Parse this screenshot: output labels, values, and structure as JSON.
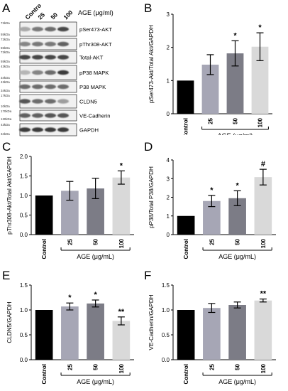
{
  "figure": {
    "colors": {
      "control": "#000000",
      "c25": "#a6a6b5",
      "c50": "#7c7c86",
      "c100": "#d9d9d9"
    },
    "panels": [
      "A",
      "B",
      "C",
      "D",
      "E",
      "F"
    ]
  },
  "blot": {
    "lanes": [
      "Contro",
      "25",
      "50",
      "100"
    ],
    "header": "AGE (μg/ml)",
    "rows": [
      {
        "label": "pSer473-AKT",
        "markers": [
          "72kDa",
          "55kDa"
        ]
      },
      {
        "label": "pThr308-AKT",
        "markers": [
          "72kDa",
          "55kDa"
        ]
      },
      {
        "label": "Total-AKT",
        "markers": [
          "72kDa",
          "55kDa"
        ]
      },
      {
        "label": "pP38 MAPK",
        "markers": [
          "43kDa",
          "34kDa"
        ]
      },
      {
        "label": "P38 MAPK",
        "markers": [
          "43kDa",
          "34kDa"
        ]
      },
      {
        "label": "CLDN5",
        "markers": [
          "17kDa",
          "10kDa"
        ]
      },
      {
        "label": "VE-Cadherin",
        "markers": [
          "170kDa",
          "130kDa"
        ]
      },
      {
        "label": "GAPDH",
        "markers": [
          "43kDa",
          "34kDa"
        ]
      }
    ],
    "intensity": [
      [
        0.35,
        0.55,
        0.6,
        0.75
      ],
      [
        0.5,
        0.55,
        0.55,
        0.65
      ],
      [
        0.75,
        0.75,
        0.75,
        0.75
      ],
      [
        0.3,
        0.5,
        0.6,
        0.8
      ],
      [
        0.6,
        0.6,
        0.6,
        0.6
      ],
      [
        0.7,
        0.6,
        0.6,
        0.4
      ],
      [
        0.65,
        0.65,
        0.7,
        0.7
      ],
      [
        0.8,
        0.8,
        0.8,
        0.8
      ]
    ]
  },
  "chart_data": [
    {
      "panel": "B",
      "type": "bar",
      "categories": [
        "Control",
        "25",
        "50",
        "100"
      ],
      "values": [
        1.0,
        1.48,
        1.82,
        2.02
      ],
      "errors": [
        0,
        0.3,
        0.38,
        0.42
      ],
      "sig": [
        "",
        "",
        "*",
        "*"
      ],
      "ylabel": "pSer473-Akt/Total Akt/GAPDH",
      "xlabel": "AGE (μg/ml)",
      "ylim": [
        0,
        3
      ],
      "yticks": [
        "0",
        "1",
        "2",
        "3"
      ]
    },
    {
      "panel": "C",
      "type": "bar",
      "categories": [
        "Control",
        "25",
        "50",
        "100"
      ],
      "values": [
        1.0,
        1.12,
        1.18,
        1.46
      ],
      "errors": [
        0,
        0.24,
        0.26,
        0.17
      ],
      "sig": [
        "",
        "",
        "",
        "*"
      ],
      "ylabel": "pThr308-Akt/Total Akt/GAPDH",
      "xlabel": "AGE (μg/mL)",
      "ylim": [
        0,
        2
      ],
      "yticks": [
        "0.0",
        "0.5",
        "1.0",
        "1.5",
        "2.0"
      ]
    },
    {
      "panel": "D",
      "type": "bar",
      "categories": [
        "Control",
        "25",
        "50",
        "100"
      ],
      "values": [
        1.0,
        1.8,
        1.95,
        3.08
      ],
      "errors": [
        0,
        0.3,
        0.4,
        0.42
      ],
      "sig": [
        "",
        "*",
        "*",
        "#"
      ],
      "ylabel": "pP38/Total P38/GAPDH",
      "xlabel": "AGE (μg/mL)",
      "ylim": [
        0,
        4
      ],
      "yticks": [
        "0",
        "1",
        "2",
        "3",
        "4"
      ]
    },
    {
      "panel": "E",
      "type": "bar",
      "categories": [
        "Control",
        "25",
        "50",
        "100"
      ],
      "values": [
        1.0,
        1.07,
        1.13,
        0.78
      ],
      "errors": [
        0,
        0.07,
        0.07,
        0.08
      ],
      "sig": [
        "",
        "*",
        "*",
        "**"
      ],
      "ylabel": "CLDN5/GAPDH",
      "xlabel": "AGE (μg/mL)",
      "ylim": [
        0,
        1.5
      ],
      "yticks": [
        "0.0",
        "0.5",
        "1.0",
        "1.5"
      ]
    },
    {
      "panel": "F",
      "type": "bar",
      "categories": [
        "Control",
        "25",
        "50",
        "100"
      ],
      "values": [
        1.0,
        1.04,
        1.1,
        1.19
      ],
      "errors": [
        0,
        0.09,
        0.06,
        0.03
      ],
      "sig": [
        "",
        "",
        "",
        "**"
      ],
      "ylabel": "VE-Cadherin/GAPDH",
      "xlabel": "AGE (μg/mL)",
      "ylim": [
        0,
        1.5
      ],
      "yticks": [
        "0.0",
        "0.5",
        "1.0",
        "1.5"
      ]
    }
  ]
}
